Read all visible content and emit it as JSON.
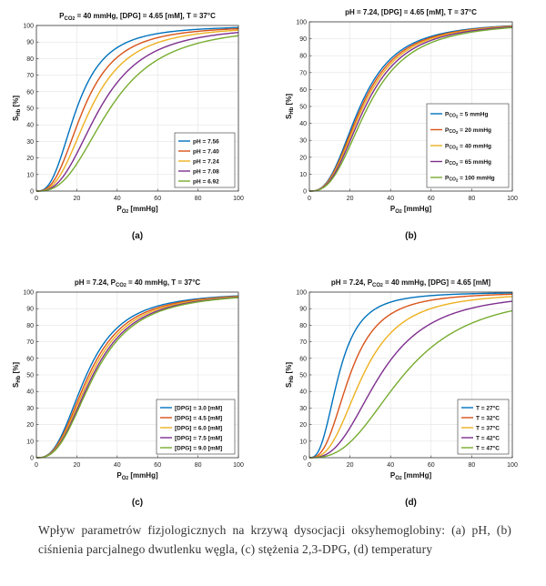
{
  "figure": {
    "caption": "Wpływ parametrów fizjologicznych na krzywą dysocjacji oksyhemoglobiny: (a) pH, (b) ciśnienia parcjalnego dwutlenku węgla, (c) stężenia 2,3-DPG, (d) temperatury",
    "palette": [
      "#0072BD",
      "#D95319",
      "#EDB120",
      "#7E2F8E",
      "#77AC30"
    ]
  },
  "chart_data": [
    {
      "type": "line",
      "panel_label": "(a)",
      "title": "P_CO2 = 40 mmHg, [DPG] = 4.65 [mM], T = 37°C",
      "title_parts": {
        "pre": "P",
        "sub": "CO",
        "sub2": "2",
        "post": " = 40 mmHg, [DPG] = 4.65 [mM], T = 37°C"
      },
      "xlabel": "P_O2 [mmHg]",
      "ylabel": "S_Hb [%]",
      "xlim": [
        0,
        100
      ],
      "ylim": [
        0,
        100
      ],
      "xticks": [
        "0",
        "20",
        "40",
        "60",
        "80",
        "100"
      ],
      "yticks": [
        "0",
        "10",
        "20",
        "30",
        "40",
        "50",
        "60",
        "70",
        "80",
        "90",
        "100"
      ],
      "grid": true,
      "legend_position": "bottom-right",
      "curve_model": {
        "form": "hill",
        "n": 2.7
      },
      "series": [
        {
          "name": "pH = 7.56",
          "p50": 20
        },
        {
          "name": "pH = 7.40",
          "p50": 23.5
        },
        {
          "name": "pH = 7.24",
          "p50": 27
        },
        {
          "name": "pH = 7.08",
          "p50": 31.5
        },
        {
          "name": "pH = 6.92",
          "p50": 36.5
        }
      ]
    },
    {
      "type": "line",
      "panel_label": "(b)",
      "title": "pH = 7.24, [DPG] = 4.65 [mM], T = 37°C",
      "title_parts": {
        "pre": "pH = 7.24, [DPG] = 4.65 [mM], T = 37°C"
      },
      "xlabel": "P_O2 [mmHg]",
      "ylabel": "S_Hb [%]",
      "xlim": [
        0,
        100
      ],
      "ylim": [
        0,
        100
      ],
      "xticks": [
        "0",
        "20",
        "40",
        "60",
        "80",
        "100"
      ],
      "yticks": [
        "0",
        "10",
        "20",
        "30",
        "40",
        "50",
        "60",
        "70",
        "80",
        "90",
        "100"
      ],
      "grid": true,
      "legend_position": "bottom-right",
      "curve_model": {
        "form": "hill",
        "n": 2.7
      },
      "series": [
        {
          "name": "P_CO2 = 5 mmHg",
          "label_pre": "P",
          "label_sub": "CO",
          "label_sub2": "2",
          "label_post": " = 5 mmHg",
          "p50": 25
        },
        {
          "name": "P_CO2 = 20 mmHg",
          "label_pre": "P",
          "label_sub": "CO",
          "label_sub2": "2",
          "label_post": " = 20 mmHg",
          "p50": 25.8
        },
        {
          "name": "P_CO2 = 40 mmHg",
          "label_pre": "P",
          "label_sub": "CO",
          "label_sub2": "2",
          "label_post": " = 40 mmHg",
          "p50": 26.6
        },
        {
          "name": "P_CO2 = 65 mmHg",
          "label_pre": "P",
          "label_sub": "CO",
          "label_sub2": "2",
          "label_post": " = 65 mmHg",
          "p50": 27.6
        },
        {
          "name": "P_CO2 = 100 mmHg",
          "label_pre": "P",
          "label_sub": "CO",
          "label_sub2": "2",
          "label_post": " = 100 mmHg",
          "p50": 29
        }
      ]
    },
    {
      "type": "line",
      "panel_label": "(c)",
      "title": "pH = 7.24, P_CO2 = 40 mmHg, T = 37°C",
      "title_parts": {
        "pre": "pH = 7.24, P",
        "sub": "CO",
        "sub2": "2",
        "post": " = 40 mmHg, T = 37°C"
      },
      "xlabel": "P_O2 [mmHg]",
      "ylabel": "S_Hb [%]",
      "xlim": [
        0,
        100
      ],
      "ylim": [
        0,
        100
      ],
      "xticks": [
        "0",
        "20",
        "40",
        "60",
        "80",
        "100"
      ],
      "yticks": [
        "0",
        "10",
        "20",
        "30",
        "40",
        "50",
        "60",
        "70",
        "80",
        "90",
        "100"
      ],
      "grid": true,
      "legend_position": "bottom-right",
      "curve_model": {
        "form": "hill",
        "n": 2.7
      },
      "series": [
        {
          "name": "[DPG] = 3.0 [mM]",
          "p50": 24.8
        },
        {
          "name": "[DPG] = 4.5 [mM]",
          "p50": 26
        },
        {
          "name": "[DPG] = 6.0 [mM]",
          "p50": 27
        },
        {
          "name": "[DPG] = 7.5 [mM]",
          "p50": 28
        },
        {
          "name": "[DPG] = 9.0 [mM]",
          "p50": 28.8
        }
      ]
    },
    {
      "type": "line",
      "panel_label": "(d)",
      "title": "pH = 7.24, P_CO2 = 40 mmHg, [DPG] = 4.65 [mM]",
      "title_parts": {
        "pre": "pH = 7.24, P",
        "sub": "CO",
        "sub2": "2",
        "post": " = 40 mmHg, [DPG] = 4.65 [mM]"
      },
      "xlabel": "P_O2 [mmHg]",
      "ylabel": "S_Hb [%]",
      "xlim": [
        0,
        100
      ],
      "ylim": [
        0,
        100
      ],
      "xticks": [
        "0",
        "20",
        "40",
        "60",
        "80",
        "100"
      ],
      "yticks": [
        "0",
        "10",
        "20",
        "30",
        "40",
        "50",
        "60",
        "70",
        "80",
        "90",
        "100"
      ],
      "grid": true,
      "legend_position": "bottom-right",
      "curve_model": {
        "form": "hill",
        "n": 2.7
      },
      "series": [
        {
          "name": "T = 27°C",
          "p50": 14.5
        },
        {
          "name": "T = 32°C",
          "p50": 20
        },
        {
          "name": "T = 37°C",
          "p50": 26.5
        },
        {
          "name": "T = 42°C",
          "p50": 35
        },
        {
          "name": "T = 47°C",
          "p50": 46.5
        }
      ]
    }
  ]
}
